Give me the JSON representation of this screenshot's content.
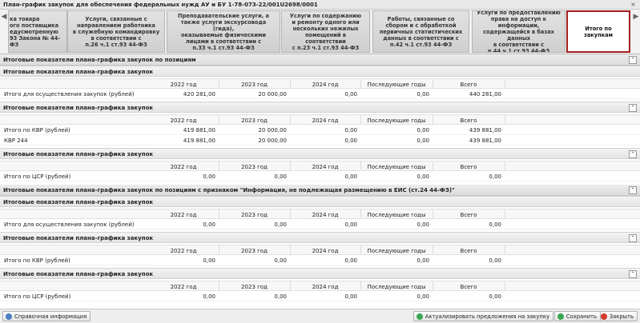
{
  "window": {
    "title": "План-график закупок для обеспечения федеральных нужд АУ и БУ 1-78-073-22/001U2698/0001"
  },
  "tabs": [
    "ка товара\nого поставщика\nедусмотренную\n93 Закона № 44-ФЗ",
    "Услуги, связанные с\nнаправлением работника\nв служебную командировку\nв соответствии с\nп.26 ч.1 ст.93 44-ФЗ",
    "Преподавательские услуги, а\nтакже услуги экскурсовода (гида),\nоказываемые физическими\nлицами в соответствии с\nп.33 ч.1 ст.93 44-ФЗ",
    "Услуги по содержанию\nи ремонту одного или\nнескольких нежилых\nпомещений в соответствии\nс п.23 ч.1 ст.93 44-ФЗ",
    "Работы, связанные со\nсбором и с обработкой\nпервичных статистических\nданных в соответствии с\nп.42 ч.1 ст.93 44-ФЗ",
    "Услуги по предоставлению\nправа на доступ к информации,\nсодержащейся в базах данных\nв соответствии с\nп.44 ч.1 ст.93 44-ФЗ",
    "Итого по закупкам"
  ],
  "sections": [
    {
      "title": "Итоговые показатели плана-графика закупок по позициям",
      "blocks": [
        {
          "title": "Итоговые показатели плана-графика закупок",
          "columns": [
            "2022 год",
            "2023 год",
            "2024 год",
            "Последующие годы",
            "Всего"
          ],
          "rows": [
            {
              "label": "Итого для осуществления закупок (рублей)",
              "cells": [
                "420 281,00",
                "20 000,00",
                "0,00",
                "0,00",
                "440 281,00"
              ]
            }
          ]
        },
        {
          "title": "Итоговые показатели плана-графика закупок",
          "columns": [
            "2022 год",
            "2023 год",
            "2024 год",
            "Последующие годы",
            "Всего"
          ],
          "rows": [
            {
              "label": "Итого по КВР (рублей)",
              "cells": [
                "419 881,00",
                "20 000,00",
                "0,00",
                "0,00",
                "439 881,00"
              ]
            },
            {
              "label": "КВР 244",
              "cells": [
                "419 881,00",
                "20 000,00",
                "0,00",
                "0,00",
                "439 881,00"
              ]
            }
          ]
        },
        {
          "title": "Итоговые показатели плана-графика закупок",
          "columns": [
            "2022 год",
            "2023 год",
            "2024 год",
            "Последующие годы",
            "Всего"
          ],
          "rows": [
            {
              "label": "Итого по ЦСР (рублей)",
              "cells": [
                "0,00",
                "0,00",
                "0,00",
                "0,00",
                "0,00"
              ]
            }
          ]
        }
      ]
    },
    {
      "title": "Итоговые показатели плана-графика закупок по позициям с признаком \"Информация, не подлежащая размещению в ЕИС (ст.24 44-ФЗ)\"",
      "blocks": [
        {
          "title": "Итоговые показатели плана-графика закупок",
          "columns": [
            "2022 год",
            "2023 год",
            "2024 год",
            "Последующие годы",
            "Всего"
          ],
          "rows": [
            {
              "label": "Итого для осуществления закупок (рублей)",
              "cells": [
                "0,00",
                "0,00",
                "0,00",
                "0,00",
                "0,00"
              ]
            }
          ]
        },
        {
          "title": "Итоговые показатели плана-графика закупок",
          "columns": [
            "2022 год",
            "2023 год",
            "2024 год",
            "Последующие годы",
            "Всего"
          ],
          "rows": [
            {
              "label": "Итого по КВР (рублей)",
              "cells": [
                "0,00",
                "0,00",
                "0,00",
                "0,00",
                "0,00"
              ]
            }
          ]
        },
        {
          "title": "Итоговые показатели плана-графика закупок",
          "columns": [
            "2022 год",
            "2023 год",
            "2024 год",
            "Последующие годы",
            "Всего"
          ],
          "rows": [
            {
              "label": "Итого по ЦСР (рублей)",
              "cells": [
                "0,00",
                "0,00",
                "0,00",
                "0,00",
                "0,00"
              ]
            }
          ]
        }
      ]
    }
  ],
  "buttons": {
    "help": "Справочная информация",
    "update": "Актуализировать предложения на закупку",
    "save": "Сохранить",
    "close": "Закрыть"
  }
}
